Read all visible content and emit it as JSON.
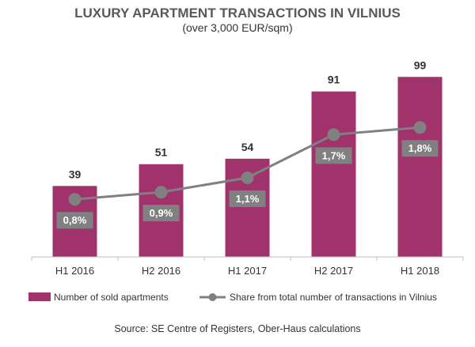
{
  "chart_data": {
    "type": "bar",
    "title": "LUXURY APARTMENT TRANSACTIONS IN VILNIUS",
    "subtitle": "(over 3,000 EUR/sqm)",
    "categories": [
      "H1 2016",
      "H2 2016",
      "H1 2017",
      "H2 2017",
      "H1 2018"
    ],
    "series": [
      {
        "name": "Number of sold apartments",
        "type": "bar",
        "values": [
          39,
          51,
          54,
          91,
          99
        ],
        "labels": [
          "39",
          "51",
          "54",
          "91",
          "99"
        ],
        "color": "#a0336b"
      },
      {
        "name": "Share from total number of transactions in Vilnius",
        "type": "line",
        "values": [
          0.8,
          0.9,
          1.1,
          1.7,
          1.8
        ],
        "labels": [
          "0,8%",
          "0,9%",
          "1,1%",
          "1,7%",
          "1,8%"
        ],
        "color": "#808080"
      }
    ],
    "ylim_bars": [
      0,
      110
    ],
    "ylim_share": [
      0,
      2.8
    ],
    "grid": false,
    "legend_position": "bottom",
    "source": "Source: SE Centre of Registers, Ober-Haus calculations"
  }
}
